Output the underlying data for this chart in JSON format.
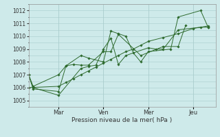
{
  "background_color": "#ceeaea",
  "grid_color": "#a8cccc",
  "line_color": "#2d6a2d",
  "marker_color": "#2d6a2d",
  "x_tick_labels": [
    "Mar",
    "Ven",
    "Mer",
    "Jeu"
  ],
  "x_tick_positions": [
    2,
    5,
    8,
    11
  ],
  "xlabel": "Pression niveau de la mer( hPa )",
  "ylim": [
    1004.5,
    1012.5
  ],
  "yticks": [
    1005,
    1006,
    1007,
    1008,
    1009,
    1010,
    1011,
    1012
  ],
  "xlim": [
    0,
    12.5
  ],
  "series": [
    {
      "x": [
        0,
        0.3,
        2,
        2.5,
        3.5,
        4,
        5,
        5.5,
        6,
        6.5,
        7,
        7.5,
        8,
        9.5,
        10,
        11.5,
        12
      ],
      "y": [
        1007.0,
        1006.1,
        1007.0,
        1007.7,
        1008.5,
        1008.3,
        1008.0,
        1010.4,
        1010.2,
        1010.0,
        1008.7,
        1008.0,
        1008.8,
        1009.0,
        1011.5,
        1012.0,
        1010.7
      ]
    },
    {
      "x": [
        0,
        0.3,
        2,
        2.5,
        3.0,
        3.5,
        4,
        5,
        5.5,
        6,
        7.5,
        9,
        10,
        10.5
      ],
      "y": [
        1007.0,
        1005.9,
        1005.7,
        1007.7,
        1007.8,
        1007.75,
        1007.75,
        1008.8,
        1008.8,
        1010.15,
        1008.5,
        1009.2,
        1009.2,
        1010.85
      ]
    },
    {
      "x": [
        0,
        0.3,
        2,
        3.5,
        4,
        4.5,
        5,
        5.5,
        6,
        6.5,
        8,
        8.5,
        9,
        10,
        11.5,
        12
      ],
      "y": [
        1007.0,
        1006.0,
        1005.4,
        1007.5,
        1007.65,
        1007.75,
        1009.0,
        1009.85,
        1007.8,
        1008.5,
        1009.1,
        1009.0,
        1009.0,
        1010.5,
        1010.7,
        1010.7
      ]
    },
    {
      "x": [
        0,
        2,
        2.5,
        3,
        3.5,
        4,
        4.5,
        5,
        5.5,
        6,
        6.5,
        7,
        7.5,
        8,
        9,
        10,
        11,
        12
      ],
      "y": [
        1006.0,
        1006.1,
        1006.4,
        1006.7,
        1007.0,
        1007.3,
        1007.6,
        1007.9,
        1008.2,
        1008.5,
        1008.8,
        1009.0,
        1009.3,
        1009.6,
        1009.9,
        1010.2,
        1010.6,
        1010.8
      ]
    }
  ]
}
